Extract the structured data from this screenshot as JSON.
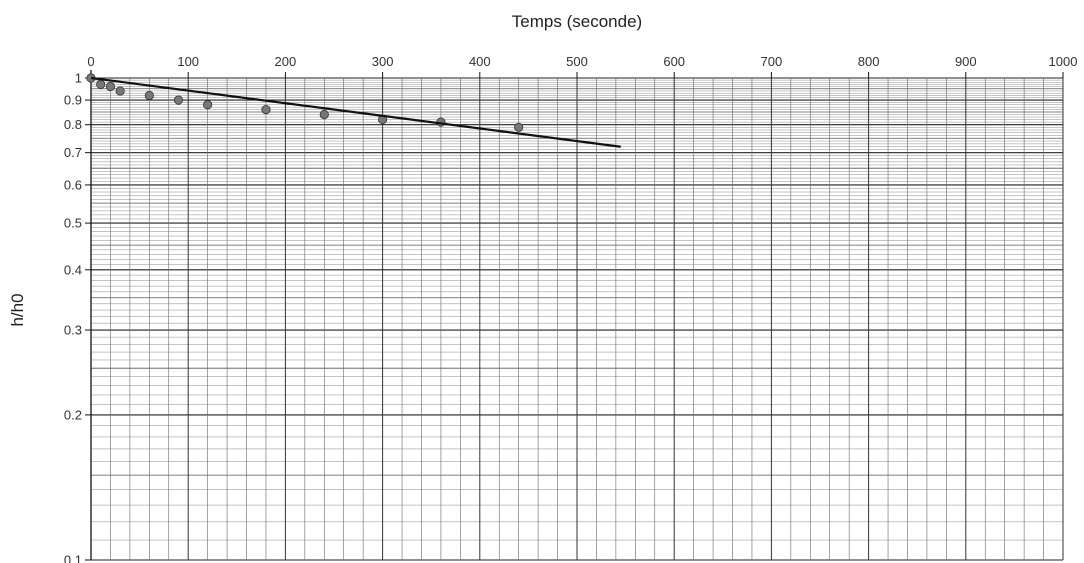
{
  "chart_data": {
    "type": "scatter",
    "title": "",
    "xlabel": "Temps (seconde)",
    "ylabel": "h/h0",
    "x_axis_position": "top",
    "y_scale": "log",
    "xlim": [
      0,
      1000
    ],
    "ylim": [
      0.1,
      1
    ],
    "x_ticks": [
      0,
      100,
      200,
      300,
      400,
      500,
      600,
      700,
      800,
      900,
      1000
    ],
    "x_tick_labels": [
      "0",
      "100",
      "200",
      "300",
      "400",
      "500",
      "600",
      "700",
      "800",
      "900",
      "1000"
    ],
    "y_ticks": [
      0.1,
      0.2,
      0.3,
      0.4,
      0.5,
      0.6,
      0.7,
      0.8,
      0.9,
      1
    ],
    "y_tick_labels": [
      "0.1",
      "0.2",
      "0.3",
      "0.4",
      "0.5",
      "0.6",
      "0.7",
      "0.8",
      "0.9",
      "1"
    ],
    "grid": true,
    "series": [
      {
        "kind": "points",
        "color": "#777777",
        "points": [
          {
            "x": 0,
            "y": 1.0
          },
          {
            "x": 10,
            "y": 0.97
          },
          {
            "x": 20,
            "y": 0.96
          },
          {
            "x": 30,
            "y": 0.94
          },
          {
            "x": 60,
            "y": 0.92
          },
          {
            "x": 90,
            "y": 0.9
          },
          {
            "x": 120,
            "y": 0.88
          },
          {
            "x": 180,
            "y": 0.86
          },
          {
            "x": 240,
            "y": 0.84
          },
          {
            "x": 300,
            "y": 0.82
          },
          {
            "x": 360,
            "y": 0.81
          },
          {
            "x": 440,
            "y": 0.79
          }
        ]
      },
      {
        "kind": "fit-line",
        "color": "#111111",
        "points": [
          {
            "x": 0,
            "y": 1.0
          },
          {
            "x": 545,
            "y": 0.72
          }
        ]
      }
    ]
  }
}
